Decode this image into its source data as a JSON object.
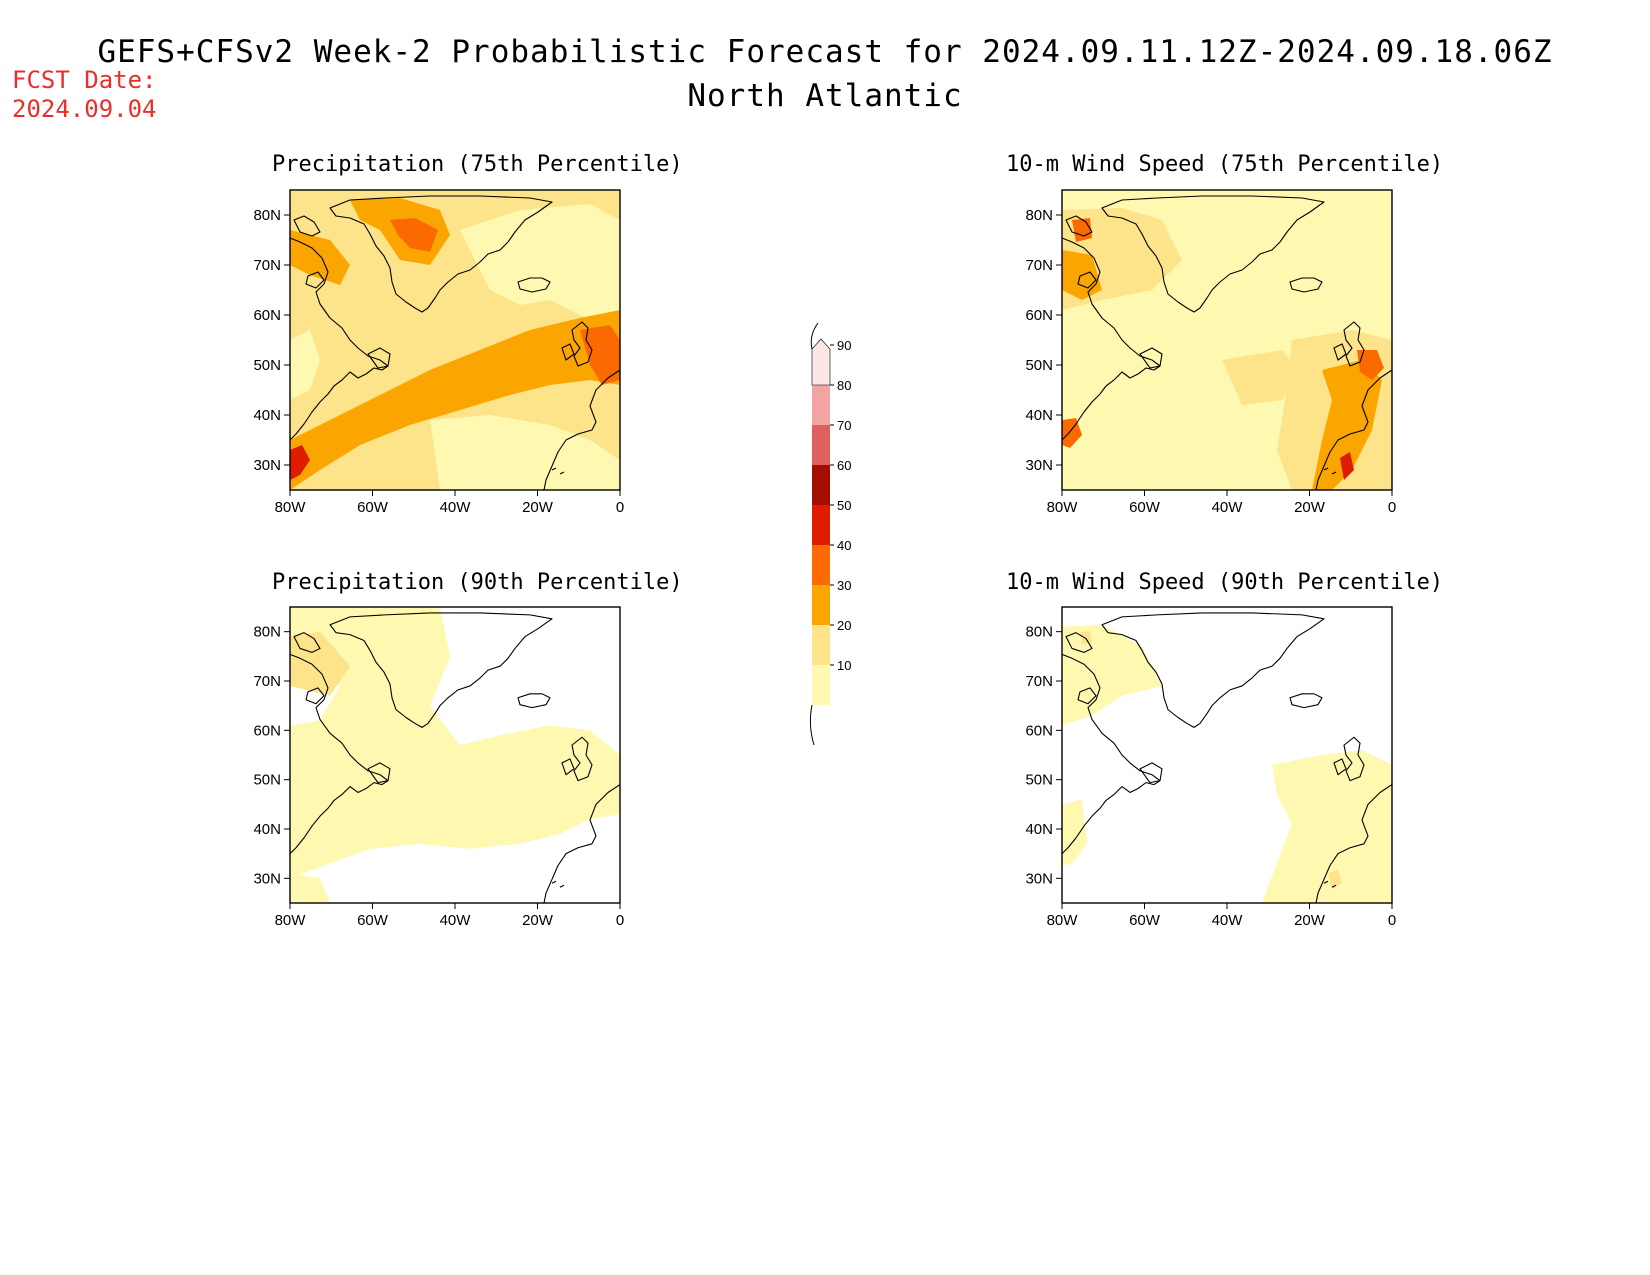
{
  "header": {
    "title": "GEFS+CFSv2 Week-2 Probabilistic Forecast for 2024.09.11.12Z-2024.09.18.06Z",
    "subtitle": "North Atlantic",
    "fcst_label": "FCST Date:",
    "fcst_date": "2024.09.04"
  },
  "axes": {
    "lat_ticks": [
      "80N",
      "70N",
      "60N",
      "50N",
      "40N",
      "30N"
    ],
    "lon_ticks": [
      "80W",
      "60W",
      "40W",
      "20W",
      "0"
    ]
  },
  "colorbar": {
    "levels": [
      "10",
      "20",
      "30",
      "40",
      "50",
      "60",
      "70",
      "80",
      "90"
    ],
    "colors": [
      "#fff8b0",
      "#fde38a",
      "#fba500",
      "#fb6a00",
      "#e01c00",
      "#a40e00",
      "#e06060",
      "#f4a3a3",
      "#fde6e6"
    ]
  },
  "panels": [
    {
      "title": "Precipitation (75th Percentile)"
    },
    {
      "title": "10-m Wind Speed (75th Percentile)"
    },
    {
      "title": "Precipitation (90th Percentile)"
    },
    {
      "title": "10-m Wind Speed (90th Percentile)"
    }
  ]
}
